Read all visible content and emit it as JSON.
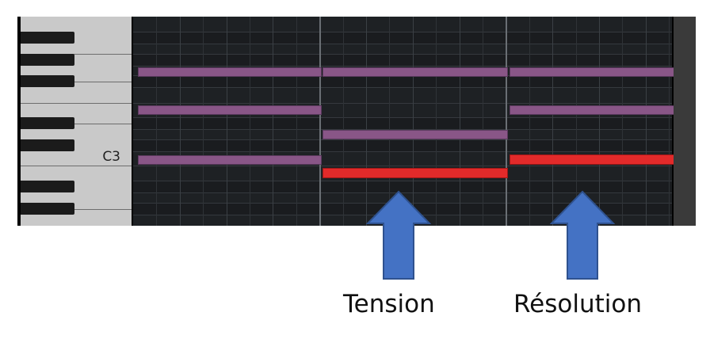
{
  "piano_roll": {
    "key_label": "C3",
    "colors": {
      "chord_note": "#895687",
      "highlight_note": "#e22a2a",
      "grid_background": "#1e2124",
      "arrow": "#4472c4"
    },
    "notes": [
      {
        "color": "purple",
        "name": "chord-1-top"
      },
      {
        "color": "purple",
        "name": "chord-1-middle"
      },
      {
        "color": "purple",
        "name": "chord-1-bottom"
      },
      {
        "color": "purple",
        "name": "chord-2-top"
      },
      {
        "color": "purple",
        "name": "chord-2-middle"
      },
      {
        "color": "red",
        "name": "chord-2-bottom"
      },
      {
        "color": "purple",
        "name": "chord-3-top"
      },
      {
        "color": "purple",
        "name": "chord-3-middle"
      },
      {
        "color": "red",
        "name": "chord-3-bottom"
      }
    ]
  },
  "annotations": {
    "tension_label": "Tension",
    "resolution_label": "Résolution"
  }
}
